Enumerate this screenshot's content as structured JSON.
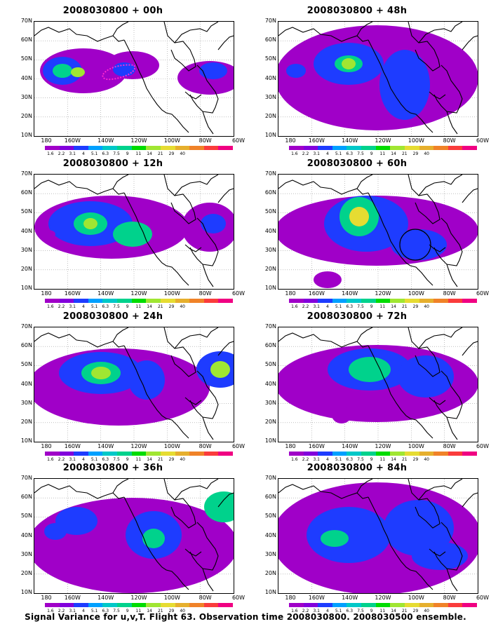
{
  "caption": "Signal Variance for u,v,T. Flight 63. Observation time 2008030800. 2008030500 ensemble.",
  "y_labels": [
    "70N",
    "60N",
    "50N",
    "40N",
    "30N",
    "20N",
    "10N"
  ],
  "x_labels": [
    "180",
    "160W",
    "140W",
    "120W",
    "100W",
    "80W",
    "60W"
  ],
  "colorbar": {
    "labels": [
      "1.6",
      "2.2",
      "3.1",
      "4",
      "5.1",
      "6.3",
      "7.5",
      "9",
      "11",
      "14",
      "21",
      "29",
      "40"
    ],
    "colors": [
      "#a000c8",
      "#8200dc",
      "#1e3cff",
      "#00a0ff",
      "#00c8c8",
      "#00d28c",
      "#00dc00",
      "#a0e632",
      "#e6dc32",
      "#e6af2d",
      "#f08228",
      "#fa3c3c",
      "#f00082"
    ]
  },
  "panels": [
    {
      "title": "2008030800 + 00h"
    },
    {
      "title": "2008030800 + 12h"
    },
    {
      "title": "2008030800 + 24h"
    },
    {
      "title": "2008030800 + 36h"
    },
    {
      "title": "2008030800 + 48h"
    },
    {
      "title": "2008030800 + 60h"
    },
    {
      "title": "2008030800 + 72h"
    },
    {
      "title": "2008030800 + 84h"
    }
  ]
}
